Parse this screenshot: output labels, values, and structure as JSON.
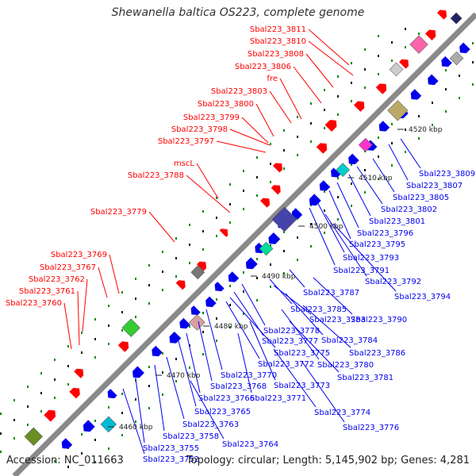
{
  "title": "Shewanella baltica OS223, complete genome",
  "footer": {
    "accession": "Accession: NC_011663",
    "summary": "Topology: circular; Length: 5,145,902 bp; Genes: 4,281"
  },
  "colors": {
    "forward": "#ff0000",
    "reverse": "#0000ee",
    "backbone": "#888888",
    "dots": "#0a8a0a"
  },
  "ticks": [
    "4460 kbp",
    "4470 kbp",
    "4480 kbp",
    "4490 kbp",
    "4500 kbp",
    "4510 kbp",
    "4520 kbp"
  ],
  "labels_forward": [
    "Sbal223_3811",
    "Sbal223_3810",
    "Sbal223_3808",
    "Sbal223_3806",
    "fre",
    "Sbal223_3803",
    "Sbal223_3800",
    "Sbal223_3799",
    "Sbal223_3798",
    "Sbal223_3797",
    "mscL",
    "Sbal223_3788",
    "Sbal223_3779",
    "Sbal223_3769",
    "Sbal223_3767",
    "Sbal223_3762",
    "Sbal223_3761",
    "Sbal223_3760"
  ],
  "labels_reverse": [
    "Sbal223_3809",
    "Sbal223_3807",
    "Sbal223_3805",
    "Sbal223_3802",
    "Sbal223_3801",
    "Sbal223_3796",
    "Sbal223_3795",
    "Sbal223_3793",
    "Sbal223_3791",
    "Sbal223_3792",
    "Sbal223_3794",
    "Sbal223_3787",
    "Sbal223_3785",
    "Sbal223_3783",
    "Sbal223_3790",
    "Sbal223_3778",
    "Sbal223_3784",
    "Sbal223_3777",
    "Sbal223_3775",
    "Sbal223_3786",
    "Sbal223_3772",
    "Sbal223_3780",
    "Sbal223_3770",
    "Sbal223_3781",
    "Sbal223_3773",
    "Sbal223_3768",
    "Sbal223_3771",
    "Sbal223_3766",
    "Sbal223_3774",
    "Sbal223_3765",
    "Sbal223_3763",
    "Sbal223_3776",
    "Sbal223_3758",
    "Sbal223_3764",
    "Sbal223_3755",
    "Sbal223_3752"
  ]
}
